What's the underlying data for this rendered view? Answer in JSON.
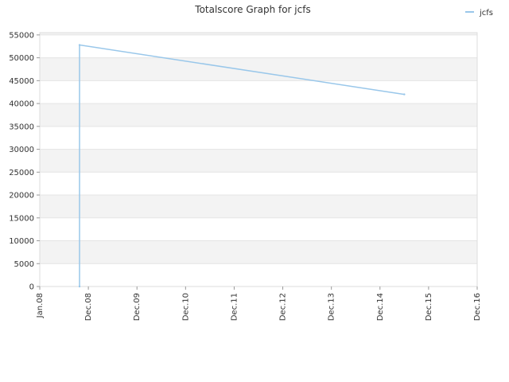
{
  "chart_data": {
    "type": "line",
    "title": "Totalscore Graph for jcfs",
    "xlabel": "",
    "ylabel": "",
    "x_ticks": [
      "Jan.08",
      "Dec.08",
      "Dec.09",
      "Dec.10",
      "Dec.11",
      "Dec.12",
      "Dec.13",
      "Dec.14",
      "Dec.15",
      "Dec.16"
    ],
    "y_ticks": [
      0,
      5000,
      10000,
      15000,
      20000,
      25000,
      30000,
      35000,
      40000,
      45000,
      50000,
      55000
    ],
    "ylim": [
      0,
      55500
    ],
    "grid": true,
    "legend_position": "top-right",
    "series": [
      {
        "name": "jcfs",
        "color": "#99c7ea",
        "points": [
          {
            "x": "Oct.08",
            "y": 0
          },
          {
            "x": "Oct.08",
            "y": 52800
          },
          {
            "x": "Jun.15",
            "y": 42000
          }
        ]
      }
    ]
  }
}
